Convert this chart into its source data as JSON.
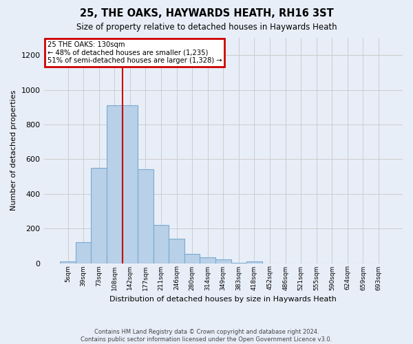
{
  "title": "25, THE OAKS, HAYWARDS HEATH, RH16 3ST",
  "subtitle": "Size of property relative to detached houses in Haywards Heath",
  "xlabel": "Distribution of detached houses by size in Haywards Heath",
  "ylabel": "Number of detached properties",
  "footer_line1": "Contains HM Land Registry data © Crown copyright and database right 2024.",
  "footer_line2": "Contains public sector information licensed under the Open Government Licence v3.0.",
  "categories": [
    "5sqm",
    "39sqm",
    "73sqm",
    "108sqm",
    "142sqm",
    "177sqm",
    "211sqm",
    "246sqm",
    "280sqm",
    "314sqm",
    "349sqm",
    "383sqm",
    "418sqm",
    "452sqm",
    "486sqm",
    "521sqm",
    "555sqm",
    "590sqm",
    "624sqm",
    "659sqm",
    "693sqm"
  ],
  "values": [
    8,
    120,
    550,
    910,
    910,
    540,
    220,
    140,
    55,
    32,
    20,
    2,
    10,
    0,
    0,
    0,
    0,
    0,
    0,
    0,
    0
  ],
  "bar_color": "#b8d0e8",
  "bar_edge_color": "#7aaacf",
  "bar_edge_width": 0.8,
  "grid_color": "#cccccc",
  "annotation_box_line1": "25 THE OAKS: 130sqm",
  "annotation_box_line2": "← 48% of detached houses are smaller (1,235)",
  "annotation_box_line3": "51% of semi-detached houses are larger (1,328) →",
  "annotation_box_edge_color": "#cc0000",
  "annotation_box_face_color": "#ffffff",
  "vertical_line_color": "#cc0000",
  "vertical_line_x": 3.5,
  "ylim": [
    0,
    1300
  ],
  "yticks": [
    0,
    200,
    400,
    600,
    800,
    1000,
    1200
  ],
  "background_color": "#e8eef8"
}
